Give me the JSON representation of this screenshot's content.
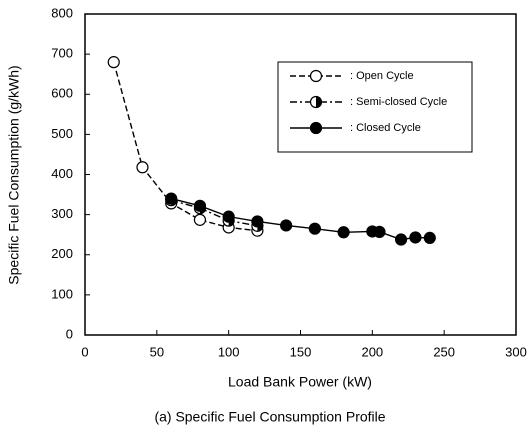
{
  "chart_data": {
    "type": "line",
    "title": "(a) Specific Fuel Consumption Profile",
    "x_label": "Load Bank Power (kW)",
    "y_label": "Specific Fuel Consumption (g/kWh)",
    "xlim": [
      0,
      300
    ],
    "xticks": [
      0,
      50,
      100,
      150,
      200,
      250,
      300
    ],
    "ylim": [
      0,
      800
    ],
    "yticks": [
      0,
      100,
      200,
      300,
      400,
      500,
      600,
      700,
      800
    ],
    "grid": false,
    "legend": "upper right",
    "series": [
      {
        "name": ": Open Cycle",
        "color": "#000000",
        "marker": "open",
        "dash": "6,3",
        "x": [
          20,
          40,
          60,
          80,
          100,
          120
        ],
        "values": [
          680,
          418,
          328,
          287,
          268,
          260
        ]
      },
      {
        "name": ": Semi-closed Cycle",
        "color": "#000000",
        "marker": "half",
        "dash": "7,3,2,3",
        "x": [
          60,
          80,
          100,
          120
        ],
        "values": [
          336,
          316,
          285,
          272
        ]
      },
      {
        "name": ": Closed Cycle",
        "color": "#000000",
        "marker": "filled",
        "dash": "",
        "x": [
          60,
          80,
          100,
          120,
          140,
          160,
          180,
          200,
          205,
          220,
          230,
          240
        ],
        "values": [
          340,
          322,
          295,
          283,
          273,
          265,
          256,
          258,
          257,
          238,
          243,
          242
        ]
      }
    ]
  }
}
